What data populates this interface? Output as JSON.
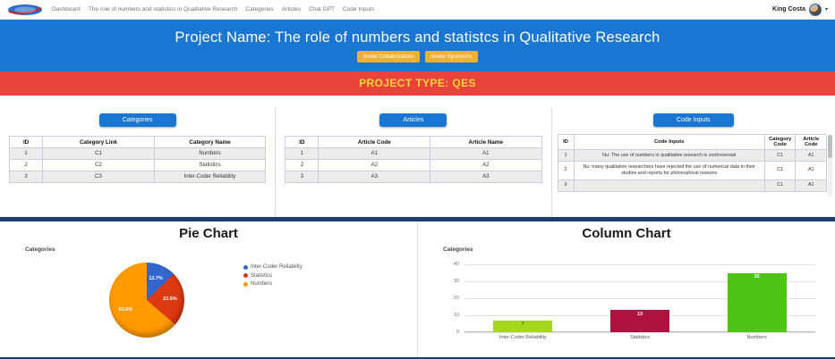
{
  "theme": {
    "accent_blue": "#1976d2",
    "button_gold": "#ecb234",
    "banner_red": "#e8423b",
    "navy": "#1c3e6e"
  },
  "navbar": {
    "items": [
      {
        "label": "Dashboard"
      },
      {
        "label": "The role of numbers and statistics in Qualitative Research"
      },
      {
        "label": "Categories"
      },
      {
        "label": "Articles"
      },
      {
        "label": "Chat GPT"
      },
      {
        "label": "Code Inputs"
      }
    ],
    "user": {
      "name": "King Costa"
    }
  },
  "hero": {
    "title": "Project Name: The role of numbers and statistcs in Qualitative Research",
    "buttons": [
      {
        "label": "Invite Collaborators"
      },
      {
        "label": "Invite Sponsors"
      }
    ]
  },
  "project_type_banner": "PROJECT TYPE: QES",
  "panels": {
    "categories": {
      "button_label": "Categories",
      "headers": [
        "ID",
        "Category Link",
        "Category Name"
      ],
      "rows": [
        [
          "1",
          "C1",
          "Numbers"
        ],
        [
          "2",
          "C2",
          "Statistics"
        ],
        [
          "3",
          "C3",
          "Inter-Coder Reliability"
        ]
      ]
    },
    "articles": {
      "button_label": "Articles",
      "headers": [
        "ID",
        "Article Code",
        "Article Name"
      ],
      "rows": [
        [
          "1",
          "A1",
          "A1"
        ],
        [
          "2",
          "A2",
          "A2"
        ],
        [
          "3",
          "A3",
          "A3"
        ]
      ]
    },
    "code_inputs": {
      "button_label": "Code Inputs",
      "headers": [
        "ID",
        "Code Inputs",
        "Category Code",
        "Article Code"
      ],
      "rows": [
        [
          "1",
          "Nu: The use of numbers in qualitative research is controversial",
          "C1",
          "A1"
        ],
        [
          "2",
          "Nu: many qualitative researchers have rejected the use of numerical data in their studies and reports for philosophical reasons",
          "C1",
          "A1"
        ],
        [
          "3",
          "",
          "C1",
          "A1"
        ]
      ]
    }
  },
  "charts": {
    "pie": {
      "section_title": "Pie Chart"
    },
    "column": {
      "section_title": "Column Chart"
    }
  },
  "chart_data": [
    {
      "type": "pie",
      "title": "Categories",
      "labels": [
        "Inter-Coder Reliability",
        "Statistics",
        "Numbers"
      ],
      "values": [
        7,
        13,
        35
      ],
      "percent_labels": [
        "12.7%",
        "23.6%",
        "63.6%"
      ],
      "colors": [
        "#3366cc",
        "#dc3912",
        "#ff9900"
      ],
      "legend_position": "right"
    },
    {
      "type": "bar",
      "title": "Categories",
      "categories": [
        "Inter-Coder Reliability",
        "Statistics",
        "Numbers"
      ],
      "values": [
        7,
        13,
        35
      ],
      "colors": [
        "#a6d71c",
        "#b01240",
        "#4ec414"
      ],
      "value_label_colors": [
        "#5c6e00",
        "#ffffff",
        "#ffffff"
      ],
      "ylim": [
        0,
        40
      ],
      "yticks": [
        0,
        10,
        20,
        30,
        40
      ],
      "grid": true,
      "legend_position": "none"
    }
  ]
}
